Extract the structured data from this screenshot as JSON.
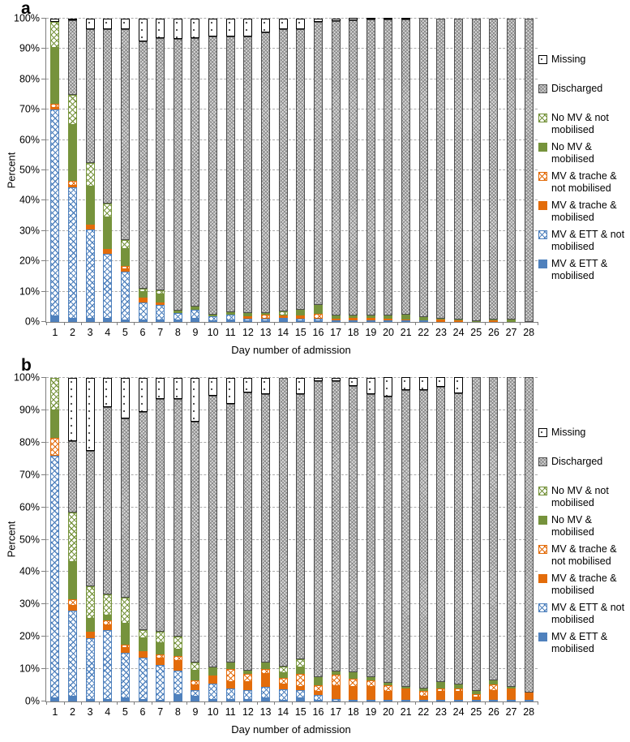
{
  "figure": {
    "panels": [
      {
        "label": "a",
        "ylabel": "Percent",
        "xlabel": "Day number of admission"
      },
      {
        "label": "b",
        "ylabel": "Percent",
        "xlabel": "Day number of admission"
      }
    ]
  },
  "legend": [
    {
      "label": "Missing",
      "fill": "dots",
      "color": "#000000"
    },
    {
      "label": "Discharged",
      "fill": "weave",
      "color": "#8c8c8c"
    },
    {
      "label": "No MV & not mobilised",
      "fill": "hatch",
      "color": "#76933c"
    },
    {
      "label": "No MV & mobilised",
      "fill": "solid",
      "color": "#76933c"
    },
    {
      "label": "MV & trache & not mobilised",
      "fill": "hatch",
      "color": "#e36c0a"
    },
    {
      "label": "MV & trache & mobilised",
      "fill": "solid",
      "color": "#e36c0a"
    },
    {
      "label": "MV & ETT & not mobilised",
      "fill": "hatch",
      "color": "#4f81bd"
    },
    {
      "label": "MV & ETT & mobilised",
      "fill": "solid",
      "color": "#4f81bd"
    }
  ],
  "chart_data": [
    {
      "type": "bar",
      "stacked": true,
      "panel": "a",
      "title": "",
      "ylabel": "Percent",
      "xlabel": "Day number of admission",
      "ylim": [
        0,
        100
      ],
      "yticks": [
        0,
        10,
        20,
        30,
        40,
        50,
        60,
        70,
        80,
        90,
        100
      ],
      "ytick_suffix": "%",
      "grid": "dashed-horizontal",
      "legend_position": "right",
      "categories": [
        1,
        2,
        3,
        4,
        5,
        6,
        7,
        8,
        9,
        10,
        11,
        12,
        13,
        14,
        15,
        16,
        17,
        18,
        19,
        20,
        21,
        22,
        23,
        24,
        25,
        26,
        27,
        28
      ],
      "series": [
        {
          "name": "MV & ETT & mobilised",
          "fill": "solid",
          "color": "#4f81bd",
          "values": [
            2,
            1,
            1,
            1,
            0.5,
            0.5,
            0.5,
            0.5,
            1,
            0.3,
            0.5,
            0.3,
            0.3,
            0.7,
            0.3,
            0.3,
            0,
            0,
            0,
            0,
            0,
            0,
            0,
            0,
            0,
            0,
            0,
            0
          ]
        },
        {
          "name": "MV & ETT & not mobilised",
          "fill": "hatch",
          "color": "#4f81bd",
          "values": [
            68,
            43.5,
            29.5,
            21.5,
            16,
            6,
            5,
            2.5,
            3,
            1.7,
            2,
            0.7,
            0.7,
            0.5,
            0.8,
            0.8,
            0.5,
            0.3,
            0.3,
            0.3,
            0.3,
            0.3,
            0,
            0,
            0,
            0,
            0,
            0
          ]
        },
        {
          "name": "MV & trache & mobilised",
          "fill": "solid",
          "color": "#e36c0a",
          "values": [
            0.5,
            0.5,
            1,
            1,
            1,
            1,
            0.5,
            0,
            0,
            0,
            0,
            1,
            0,
            1,
            1,
            0,
            0.5,
            0.7,
            0.7,
            0.5,
            0.2,
            0,
            0.7,
            0.5,
            0,
            0.5,
            0,
            0
          ]
        },
        {
          "name": "MV & trache & not mobilised",
          "fill": "hatch",
          "color": "#e36c0a",
          "values": [
            1.5,
            1.5,
            0.5,
            0.5,
            1,
            0.5,
            0.5,
            0,
            0,
            0,
            0,
            0,
            1.5,
            0,
            0,
            1.5,
            0,
            0,
            0,
            0,
            0,
            0,
            0,
            0,
            0,
            0,
            0,
            0
          ]
        },
        {
          "name": "No MV & mobilised",
          "fill": "solid",
          "color": "#76933c",
          "values": [
            18.5,
            18.5,
            12.5,
            10.5,
            5.5,
            2,
            2.5,
            0.7,
            1,
            0.5,
            0.8,
            1,
            0.5,
            0,
            1.9,
            2.4,
            1,
            1,
            1,
            1.2,
            1.7,
            1,
            0.3,
            0.3,
            0.4,
            0.2,
            0.7,
            0
          ]
        },
        {
          "name": "No MV & not mobilised",
          "fill": "hatch",
          "color": "#76933c",
          "values": [
            8.5,
            10,
            8,
            4.5,
            3,
            1,
            1.5,
            0,
            0,
            0,
            0,
            0,
            0,
            1.3,
            0,
            0.5,
            0,
            0,
            0,
            0,
            0,
            0,
            0,
            0,
            0,
            0,
            0,
            0
          ]
        },
        {
          "name": "Discharged",
          "fill": "weave",
          "color": "#8c8c8c",
          "values": [
            0,
            24.5,
            44,
            57.5,
            69.5,
            81.5,
            83,
            89.6,
            88.5,
            91.5,
            90.7,
            91,
            92.5,
            93,
            92.5,
            93.5,
            97.3,
            97.3,
            97.5,
            97.5,
            97.3,
            98.7,
            99,
            99.2,
            99.6,
            99.3,
            99.3,
            100
          ]
        },
        {
          "name": "Missing",
          "fill": "dots",
          "color": "#000000",
          "values": [
            1,
            0.5,
            3.5,
            3.5,
            3.5,
            7.5,
            6.5,
            6.7,
            6.5,
            6,
            6,
            6,
            4.5,
            3.5,
            3.5,
            1,
            0.7,
            0.7,
            0.5,
            0.5,
            0.5,
            0,
            0,
            0,
            0,
            0,
            0,
            0
          ]
        }
      ]
    },
    {
      "type": "bar",
      "stacked": true,
      "panel": "b",
      "title": "",
      "ylabel": "Percent",
      "xlabel": "Day number of admission",
      "ylim": [
        0,
        100
      ],
      "yticks": [
        0,
        10,
        20,
        30,
        40,
        50,
        60,
        70,
        80,
        90,
        100
      ],
      "ytick_suffix": "%",
      "grid": "dashed-horizontal",
      "legend_position": "right",
      "categories": [
        1,
        2,
        3,
        4,
        5,
        6,
        7,
        8,
        9,
        10,
        11,
        12,
        13,
        14,
        15,
        16,
        17,
        18,
        19,
        20,
        21,
        22,
        23,
        24,
        25,
        26,
        27,
        28
      ],
      "series": [
        {
          "name": "MV & ETT & mobilised",
          "fill": "solid",
          "color": "#4f81bd",
          "values": [
            1,
            1.5,
            0.5,
            0.5,
            1,
            0.5,
            0.3,
            2,
            1.5,
            0.5,
            0.5,
            0.5,
            1,
            0.3,
            1,
            0.3,
            0,
            0,
            0,
            0,
            0,
            0,
            0,
            0,
            0,
            0,
            0,
            0
          ]
        },
        {
          "name": "MV & ETT & not mobilised",
          "fill": "hatch",
          "color": "#4f81bd",
          "values": [
            75,
            26.5,
            19,
            21.5,
            14,
            13,
            11,
            7.5,
            2,
            5,
            3.5,
            3,
            3.5,
            3.5,
            2.5,
            1.7,
            0.8,
            0.5,
            0.5,
            0.3,
            0.3,
            0.3,
            0.3,
            0.3,
            0.3,
            0.3,
            0.3,
            0.3
          ]
        },
        {
          "name": "MV & trache & mobilised",
          "fill": "solid",
          "color": "#e36c0a",
          "values": [
            0,
            1.5,
            1.5,
            1.5,
            1.5,
            1.5,
            2,
            3,
            1.5,
            2.5,
            2,
            2.5,
            4,
            1.5,
            1,
            1,
            4,
            4,
            4,
            2.5,
            3,
            1,
            2.5,
            2.5,
            0.7,
            2.7,
            3.5,
            2.2
          ]
        },
        {
          "name": "MV & trache & not mobilised",
          "fill": "hatch",
          "color": "#e36c0a",
          "values": [
            5.5,
            2,
            0.5,
            1.5,
            1,
            0.5,
            1.2,
            1.5,
            1.5,
            0,
            4,
            2.5,
            1.5,
            2,
            4,
            2,
            3.5,
            2.5,
            2,
            2,
            0.5,
            1.7,
            1,
            1,
            1,
            2,
            0,
            0
          ]
        },
        {
          "name": "No MV & mobilised",
          "fill": "solid",
          "color": "#76933c",
          "values": [
            8.5,
            11.5,
            4,
            1.5,
            6.5,
            4,
            3.5,
            2,
            3,
            2,
            2,
            1,
            1.5,
            1.5,
            2,
            2.5,
            1,
            2,
            1,
            0.7,
            0.5,
            0.8,
            2,
            1.2,
            0.5,
            1.3,
            0.5,
            0
          ]
        },
        {
          "name": "No MV & not mobilised",
          "fill": "hatch",
          "color": "#76933c",
          "values": [
            10,
            15.5,
            10,
            6.5,
            8,
            2.5,
            3.5,
            4,
            2.5,
            0.5,
            0,
            0,
            0.5,
            2,
            2.5,
            0,
            0,
            0,
            0,
            0,
            0,
            0,
            0,
            0,
            0.5,
            0,
            0,
            0
          ]
        },
        {
          "name": "Discharged",
          "fill": "weave",
          "color": "#8c8c8c",
          "values": [
            0,
            22,
            42,
            58,
            55.5,
            67.5,
            72,
            73.5,
            74.5,
            84,
            80,
            86,
            83,
            89.2,
            82,
            91.5,
            89.7,
            88.5,
            87.5,
            88.5,
            91.7,
            92.2,
            91.2,
            90,
            97,
            93.7,
            95.7,
            97.5
          ]
        },
        {
          "name": "Missing",
          "fill": "dots",
          "color": "#000000",
          "values": [
            0,
            19.5,
            22.5,
            9,
            12.5,
            10.5,
            6.5,
            6.5,
            13.5,
            5.5,
            8,
            4.5,
            5,
            0,
            5,
            1,
            1,
            2.5,
            5,
            6,
            4,
            4,
            3,
            5,
            0,
            0,
            0,
            0
          ]
        }
      ]
    }
  ]
}
